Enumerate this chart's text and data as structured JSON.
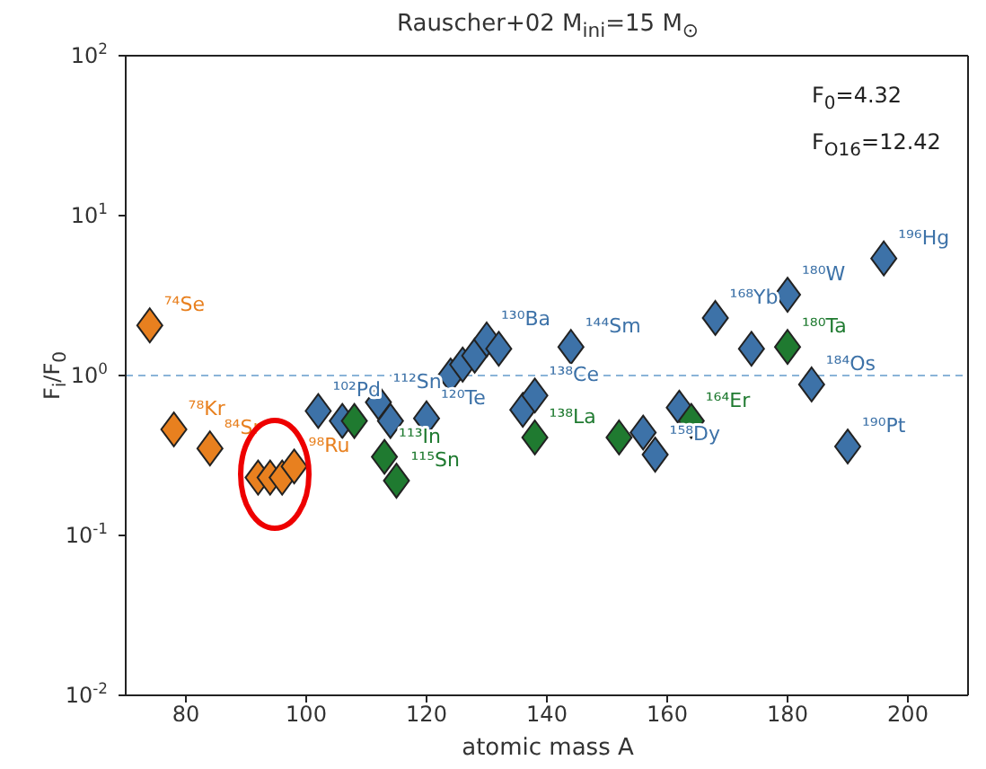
{
  "chart_data": {
    "type": "scatter",
    "title": "Rauscher+02 M$_{ini}$=15 M$_{⊙}$",
    "xlabel": "atomic mass A",
    "ylabel": "F$_{i}$/F$_{0}$",
    "annotations": [
      "F$_{0}$=4.32",
      "F$_{O16}$=12.42"
    ],
    "log": "y",
    "marker": "diamond",
    "xlim": [
      70,
      210
    ],
    "xticks": [
      80,
      100,
      120,
      140,
      160,
      180,
      200
    ],
    "ylim": [
      0.01,
      100
    ],
    "yticks": [
      {
        "value": 0.01,
        "label": "10$^{-2}$"
      },
      {
        "value": 0.1,
        "label": "10$^{-1}$"
      },
      {
        "value": 1,
        "label": "10$^{0}$"
      },
      {
        "value": 10,
        "label": "10$^{1}$"
      },
      {
        "value": 100,
        "label": "10$^{2}$"
      }
    ],
    "ref_lines": [
      {
        "axis": "y",
        "value": 1,
        "label": null,
        "color": "#8ab4d8",
        "line_style": "dashed"
      }
    ],
    "series": [
      {
        "color": "#e8801f",
        "x": [
          74,
          78,
          84,
          92,
          94,
          96,
          98
        ],
        "values": [
          2.06,
          0.46,
          0.35,
          0.23,
          0.23,
          0.23,
          0.27
        ],
        "value_labels": [
          "⁷⁴Se",
          "⁷⁸Kr",
          "⁸⁴Sr",
          null,
          null,
          null,
          "⁹⁸Ru"
        ]
      },
      {
        "color": "#3d72a8",
        "x": [
          102,
          106,
          112,
          114,
          120,
          124,
          126,
          128,
          130,
          132,
          136,
          138,
          144,
          156,
          158,
          162,
          168,
          174,
          180,
          184,
          190,
          196
        ],
        "values": [
          0.6,
          0.52,
          0.68,
          0.52,
          0.54,
          1.0,
          1.17,
          1.33,
          1.68,
          1.47,
          0.61,
          0.75,
          1.51,
          0.44,
          0.32,
          0.63,
          2.29,
          1.47,
          3.2,
          0.88,
          0.36,
          5.4
        ],
        "value_labels": [
          "¹⁰²Pd",
          null,
          "¹¹²Sn",
          null,
          "¹²⁰Te",
          null,
          null,
          null,
          "¹³⁰Ba",
          null,
          null,
          "¹³⁸Ce",
          "¹⁴⁴Sm",
          null,
          "¹⁵⁸Dy",
          null,
          "¹⁶⁸Yb",
          null,
          "¹⁸⁰W",
          "¹⁸⁴Os",
          "¹⁹⁰Pt",
          "¹⁹⁶Hg"
        ]
      },
      {
        "color": "#1f7a30",
        "x": [
          108,
          113,
          115,
          138,
          152,
          164,
          180
        ],
        "values": [
          0.52,
          0.31,
          0.22,
          0.41,
          0.41,
          0.52,
          1.51
        ],
        "value_labels": [
          null,
          "¹¹³In",
          "¹¹⁵Sn",
          "¹³⁸La",
          null,
          "¹⁶⁴Er",
          "¹⁸⁰Ta"
        ]
      }
    ]
  }
}
